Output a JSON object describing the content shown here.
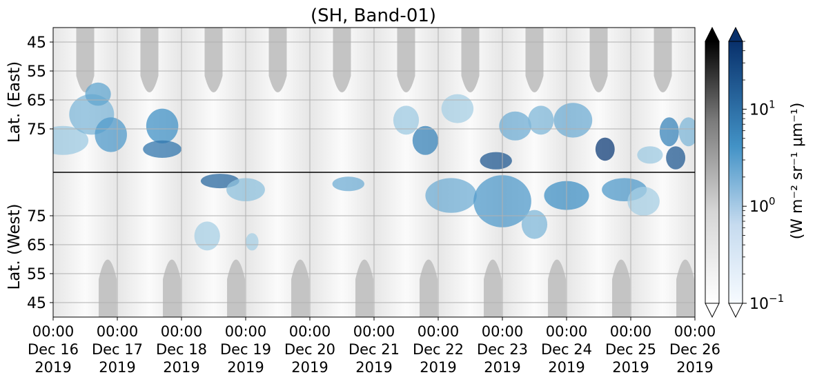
{
  "chart_data": {
    "type": "heatmap",
    "title": "(SH, Band-01)",
    "x_tick_labels": [
      [
        "00:00",
        "Dec 16",
        "2019"
      ],
      [
        "00:00",
        "Dec 17",
        "2019"
      ],
      [
        "00:00",
        "Dec 18",
        "2019"
      ],
      [
        "00:00",
        "Dec 19",
        "2019"
      ],
      [
        "00:00",
        "Dec 20",
        "2019"
      ],
      [
        "00:00",
        "Dec 21",
        "2019"
      ],
      [
        "00:00",
        "Dec 22",
        "2019"
      ],
      [
        "00:00",
        "Dec 23",
        "2019"
      ],
      [
        "00:00",
        "Dec 24",
        "2019"
      ],
      [
        "00:00",
        "Dec 25",
        "2019"
      ],
      [
        "00:00",
        "Dec 26",
        "2019"
      ]
    ],
    "x_range": [
      "2019-12-16 00:00",
      "2019-12-26 00:00"
    ],
    "y_labels": {
      "top": "Lat. (East)",
      "bottom": "Lat. (West)"
    },
    "y_ticks_east": [
      45,
      55,
      65,
      75
    ],
    "y_ticks_west": [
      75,
      65,
      55,
      45
    ],
    "y_range_east": [
      40,
      90
    ],
    "y_range_west": [
      90,
      40
    ],
    "grid": true,
    "colorbars": [
      {
        "name": "gray",
        "scale": "log",
        "range": [
          0.1,
          50
        ]
      },
      {
        "name": "blues",
        "scale": "log",
        "range": [
          0.1,
          50
        ],
        "tick_labels": [
          "10",
          "10",
          "10"
        ],
        "tick_exponents": [
          "1",
          "0",
          "−1"
        ],
        "tick_values": [
          10,
          1,
          0.1
        ]
      }
    ],
    "colorbar_label": "(W m⁻² sr⁻¹ μm⁻¹)",
    "colors": {
      "blue_dark": "#08306b",
      "blue_mid": "#2171b5",
      "blue_light": "#c6dbef",
      "gray_sun": "#c4c4c4"
    },
    "blue_patches": [
      {
        "day": 0.15,
        "lat": 79,
        "hem": "E",
        "w": 0.8,
        "h": 10,
        "v": 0.35
      },
      {
        "day": 0.6,
        "lat": 70,
        "hem": "E",
        "w": 0.7,
        "h": 14,
        "v": 0.45
      },
      {
        "day": 0.7,
        "lat": 63,
        "hem": "E",
        "w": 0.4,
        "h": 8,
        "v": 0.55
      },
      {
        "day": 0.9,
        "lat": 77,
        "hem": "E",
        "w": 0.5,
        "h": 12,
        "v": 0.6
      },
      {
        "day": 1.7,
        "lat": 74,
        "hem": "E",
        "w": 0.5,
        "h": 12,
        "v": 0.65
      },
      {
        "day": 1.7,
        "lat": 82,
        "hem": "E",
        "w": 0.6,
        "h": 6,
        "v": 0.75
      },
      {
        "day": 2.6,
        "lat": 87,
        "hem": "W",
        "w": 0.6,
        "h": 5,
        "v": 0.8
      },
      {
        "day": 2.4,
        "lat": 68,
        "hem": "W",
        "w": 0.4,
        "h": 10,
        "v": 0.3
      },
      {
        "day": 3.0,
        "lat": 84,
        "hem": "W",
        "w": 0.6,
        "h": 8,
        "v": 0.4
      },
      {
        "day": 3.1,
        "lat": 66,
        "hem": "W",
        "w": 0.2,
        "h": 6,
        "v": 0.3
      },
      {
        "day": 4.6,
        "lat": 86,
        "hem": "W",
        "w": 0.5,
        "h": 5,
        "v": 0.5
      },
      {
        "day": 5.5,
        "lat": 72,
        "hem": "E",
        "w": 0.4,
        "h": 10,
        "v": 0.35
      },
      {
        "day": 5.8,
        "lat": 79,
        "hem": "E",
        "w": 0.4,
        "h": 10,
        "v": 0.7
      },
      {
        "day": 6.2,
        "lat": 82,
        "hem": "W",
        "w": 0.8,
        "h": 12,
        "v": 0.5
      },
      {
        "day": 6.3,
        "lat": 68,
        "hem": "E",
        "w": 0.5,
        "h": 10,
        "v": 0.3
      },
      {
        "day": 6.9,
        "lat": 86,
        "hem": "E",
        "w": 0.5,
        "h": 6,
        "v": 0.85
      },
      {
        "day": 7.0,
        "lat": 80,
        "hem": "W",
        "w": 0.9,
        "h": 18,
        "v": 0.6
      },
      {
        "day": 7.2,
        "lat": 74,
        "hem": "E",
        "w": 0.5,
        "h": 10,
        "v": 0.5
      },
      {
        "day": 7.5,
        "lat": 72,
        "hem": "W",
        "w": 0.4,
        "h": 10,
        "v": 0.45
      },
      {
        "day": 7.6,
        "lat": 72,
        "hem": "E",
        "w": 0.4,
        "h": 10,
        "v": 0.45
      },
      {
        "day": 8.0,
        "lat": 82,
        "hem": "W",
        "w": 0.7,
        "h": 10,
        "v": 0.65
      },
      {
        "day": 8.1,
        "lat": 72,
        "hem": "E",
        "w": 0.6,
        "h": 12,
        "v": 0.5
      },
      {
        "day": 8.6,
        "lat": 82,
        "hem": "E",
        "w": 0.3,
        "h": 8,
        "v": 0.95
      },
      {
        "day": 8.9,
        "lat": 84,
        "hem": "W",
        "w": 0.7,
        "h": 8,
        "v": 0.6
      },
      {
        "day": 9.3,
        "lat": 84,
        "hem": "E",
        "w": 0.4,
        "h": 6,
        "v": 0.35
      },
      {
        "day": 9.6,
        "lat": 76,
        "hem": "E",
        "w": 0.3,
        "h": 10,
        "v": 0.7
      },
      {
        "day": 9.7,
        "lat": 85,
        "hem": "E",
        "w": 0.3,
        "h": 8,
        "v": 0.85
      },
      {
        "day": 9.9,
        "lat": 76,
        "hem": "E",
        "w": 0.3,
        "h": 10,
        "v": 0.45
      },
      {
        "day": 9.2,
        "lat": 80,
        "hem": "W",
        "w": 0.5,
        "h": 10,
        "v": 0.3
      }
    ]
  }
}
